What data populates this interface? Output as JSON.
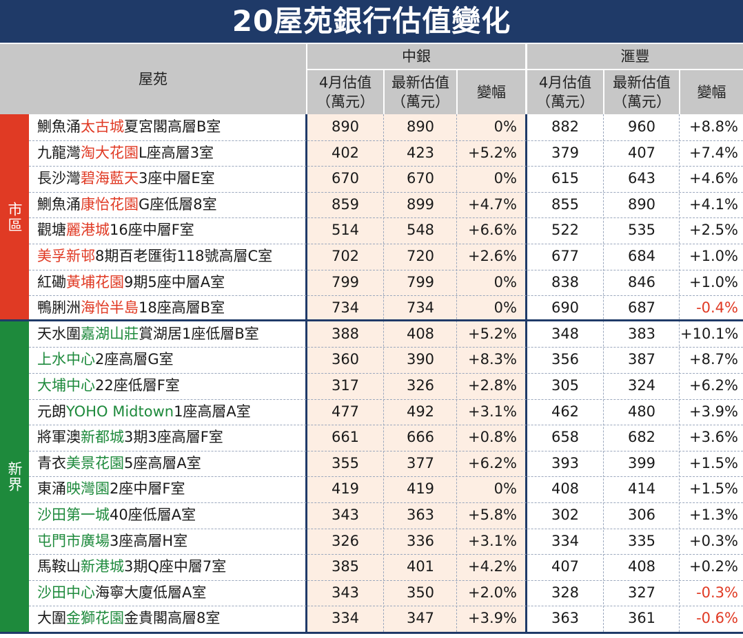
{
  "title": "20屋苑銀行估值變化",
  "header": {
    "estate": "屋苑",
    "boc": "中銀",
    "hsbc": "滙豐",
    "april_val": "4月估值",
    "latest_val": "最新估值",
    "unit": "（萬元）",
    "change": "變幅"
  },
  "regions": {
    "urban": "市區",
    "nt": "新界"
  },
  "colors": {
    "urban": "#e03a24",
    "nt": "#1e8a3c",
    "navy": "#1f3a68"
  },
  "rows": [
    {
      "pre": "鰂魚涌",
      "hl": "太古城",
      "post": "夏宮閣高層B室",
      "c": "red",
      "b1": "890",
      "b2": "890",
      "b3": "0%",
      "h1": "882",
      "h2": "960",
      "h3": "+8.8%",
      "neg": false
    },
    {
      "pre": "九龍灣",
      "hl": "淘大花園",
      "post": "L座高層3室",
      "c": "red",
      "b1": "402",
      "b2": "423",
      "b3": "+5.2%",
      "h1": "379",
      "h2": "407",
      "h3": "+7.4%",
      "neg": false
    },
    {
      "pre": "長沙灣",
      "hl": "碧海藍天",
      "post": "3座中層E室",
      "c": "red",
      "b1": "670",
      "b2": "670",
      "b3": "0%",
      "h1": "615",
      "h2": "643",
      "h3": "+4.6%",
      "neg": false
    },
    {
      "pre": "鰂魚涌",
      "hl": "康怡花園",
      "post": "G座低層8室",
      "c": "red",
      "b1": "859",
      "b2": "899",
      "b3": "+4.7%",
      "h1": "855",
      "h2": "890",
      "h3": "+4.1%",
      "neg": false
    },
    {
      "pre": "觀塘",
      "hl": "麗港城",
      "post": "16座中層F室",
      "c": "red",
      "b1": "514",
      "b2": "548",
      "b3": "+6.6%",
      "h1": "522",
      "h2": "535",
      "h3": "+2.5%",
      "neg": false
    },
    {
      "pre": "",
      "hl": "美孚新邨",
      "post": "8期百老匯街118號高層C室",
      "c": "red",
      "b1": "702",
      "b2": "720",
      "b3": "+2.6%",
      "h1": "677",
      "h2": "684",
      "h3": "+1.0%",
      "neg": false
    },
    {
      "pre": "紅磡",
      "hl": "黃埔花園",
      "post": "9期5座中層A室",
      "c": "red",
      "b1": "799",
      "b2": "799",
      "b3": "0%",
      "h1": "838",
      "h2": "846",
      "h3": "+1.0%",
      "neg": false
    },
    {
      "pre": "鴨脷洲",
      "hl": "海怡半島",
      "post": "18座高層B室",
      "c": "red",
      "b1": "734",
      "b2": "734",
      "b3": "0%",
      "h1": "690",
      "h2": "687",
      "h3": "-0.4%",
      "neg": true
    },
    {
      "pre": "天水圍",
      "hl": "嘉湖山莊",
      "post": "賞湖居1座低層B室",
      "c": "green",
      "b1": "388",
      "b2": "408",
      "b3": "+5.2%",
      "h1": "348",
      "h2": "383",
      "h3": "+10.1%",
      "neg": false
    },
    {
      "pre": "",
      "hl": "上水中心",
      "post": "2座高層G室",
      "c": "green",
      "b1": "360",
      "b2": "390",
      "b3": "+8.3%",
      "h1": "356",
      "h2": "387",
      "h3": "+8.7%",
      "neg": false
    },
    {
      "pre": "",
      "hl": "大埔中心",
      "post": "22座低層F室",
      "c": "green",
      "b1": "317",
      "b2": "326",
      "b3": "+2.8%",
      "h1": "305",
      "h2": "324",
      "h3": "+6.2%",
      "neg": false
    },
    {
      "pre": "元朗",
      "hl": "YOHO Midtown",
      "post": "1座高層A室",
      "c": "green",
      "b1": "477",
      "b2": "492",
      "b3": "+3.1%",
      "h1": "462",
      "h2": "480",
      "h3": "+3.9%",
      "neg": false
    },
    {
      "pre": "將軍澳",
      "hl": "新都城",
      "post": "3期3座高層F室",
      "c": "green",
      "b1": "661",
      "b2": "666",
      "b3": "+0.8%",
      "h1": "658",
      "h2": "682",
      "h3": "+3.6%",
      "neg": false
    },
    {
      "pre": "青衣",
      "hl": "美景花園",
      "post": "5座高層A室",
      "c": "green",
      "b1": "355",
      "b2": "377",
      "b3": "+6.2%",
      "h1": "393",
      "h2": "399",
      "h3": "+1.5%",
      "neg": false
    },
    {
      "pre": "東涌",
      "hl": "映灣園",
      "post": "2座中層F室",
      "c": "green",
      "b1": "419",
      "b2": "419",
      "b3": "0%",
      "h1": "408",
      "h2": "414",
      "h3": "+1.5%",
      "neg": false
    },
    {
      "pre": "",
      "hl": "沙田第一城",
      "post": "40座低層A室",
      "c": "green",
      "b1": "343",
      "b2": "363",
      "b3": "+5.8%",
      "h1": "302",
      "h2": "306",
      "h3": "+1.3%",
      "neg": false
    },
    {
      "pre": "",
      "hl": "屯門市廣場",
      "post": "3座高層H室",
      "c": "green",
      "b1": "326",
      "b2": "336",
      "b3": "+3.1%",
      "h1": "334",
      "h2": "335",
      "h3": "+0.3%",
      "neg": false
    },
    {
      "pre": "馬鞍山",
      "hl": "新港城",
      "post": "3期Q座中層7室",
      "c": "green",
      "b1": "385",
      "b2": "401",
      "b3": "+4.2%",
      "h1": "407",
      "h2": "408",
      "h3": "+0.2%",
      "neg": false
    },
    {
      "pre": "",
      "hl": "沙田中心",
      "post": "海寧大廈低層A室",
      "c": "green",
      "b1": "343",
      "b2": "350",
      "b3": "+2.0%",
      "h1": "328",
      "h2": "327",
      "h3": "-0.3%",
      "neg": true
    },
    {
      "pre": "大圍",
      "hl": "金獅花園",
      "post": "金貴閣高層8室",
      "c": "green",
      "b1": "334",
      "b2": "347",
      "b3": "+3.9%",
      "h1": "363",
      "h2": "361",
      "h3": "-0.6%",
      "neg": true
    }
  ]
}
